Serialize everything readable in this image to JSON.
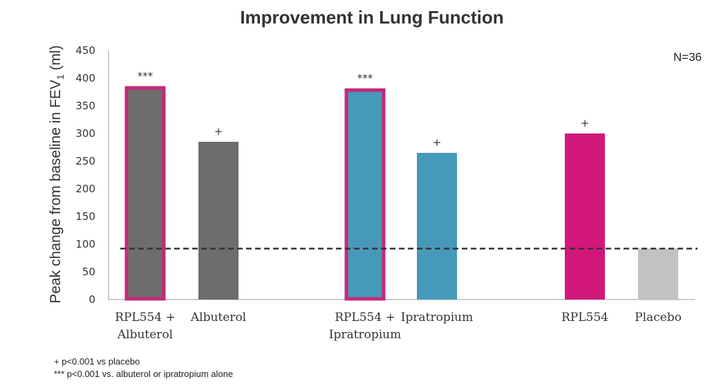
{
  "chart_data": {
    "type": "bar",
    "title": "Improvement in Lung Function",
    "ylabel_main": "Peak change from baseline in FEV",
    "ylabel_sub": "1",
    "ylabel_unit": " (ml)",
    "ylim": [
      0,
      450
    ],
    "yticks": [
      0,
      50,
      100,
      150,
      200,
      250,
      300,
      350,
      400,
      450
    ],
    "grid": false,
    "n_label": "N=36",
    "categories": [
      [
        "RPL554 +",
        "Albuterol"
      ],
      [
        "Albuterol"
      ],
      [
        "RPL554 +",
        "Ipratropium"
      ],
      [
        "Ipratropium"
      ],
      [
        "RPL554"
      ],
      [
        "Placebo"
      ]
    ],
    "values": [
      385,
      285,
      381,
      265,
      300,
      92
    ],
    "colors": [
      "#6d6d6d",
      "#6d6d6d",
      "#4799b9",
      "#4799b9",
      "#d2177a",
      "#c2c2c2"
    ],
    "highlighted": [
      true,
      false,
      true,
      false,
      false,
      false
    ],
    "highlight_color": "#c5297b",
    "annotations": [
      "***",
      "+",
      "***",
      "+",
      "+",
      ""
    ],
    "reference_line": 92,
    "footnotes": [
      "+ p<0.001 vs placebo",
      "*** p<0.001 vs. albuterol or ipratropium alone"
    ]
  }
}
